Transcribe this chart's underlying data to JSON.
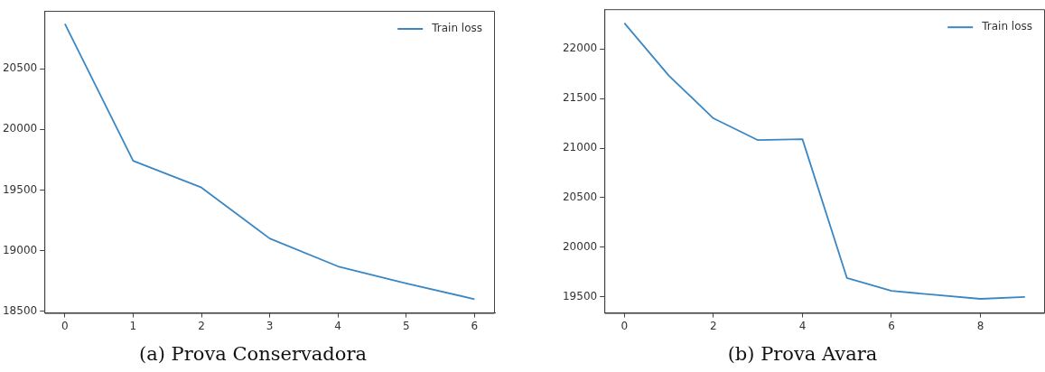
{
  "chart_data": [
    {
      "type": "line",
      "title": "(a) Prova Conservadora",
      "x": [
        0,
        1,
        2,
        3,
        4,
        5,
        6
      ],
      "xlim": [
        -0.3,
        6.3
      ],
      "xticks": [
        0,
        1,
        2,
        3,
        4,
        5,
        6
      ],
      "ylim": [
        18486,
        20977
      ],
      "yticks": [
        18500,
        19000,
        19500,
        20000,
        20500
      ],
      "legend": "top right",
      "grid": false,
      "series": [
        {
          "name": "Train loss",
          "color": "#3a87c4",
          "values": [
            20870,
            19740,
            19520,
            19100,
            18870,
            18730,
            18600
          ]
        }
      ]
    },
    {
      "type": "line",
      "title": "(b) Prova Avara",
      "x": [
        0,
        1,
        2,
        3,
        4,
        5,
        6,
        7,
        8,
        9
      ],
      "xlim": [
        -0.45,
        9.45
      ],
      "xticks": [
        0,
        2,
        4,
        6,
        8
      ],
      "ylim": [
        19338,
        22400
      ],
      "yticks": [
        19500,
        20000,
        20500,
        21000,
        21500,
        22000
      ],
      "legend": "top right",
      "grid": false,
      "series": [
        {
          "name": "Train loss",
          "color": "#3a87c4",
          "values": [
            22260,
            21730,
            21300,
            21080,
            21090,
            19690,
            19560,
            19520,
            19480,
            19500
          ]
        }
      ]
    }
  ]
}
